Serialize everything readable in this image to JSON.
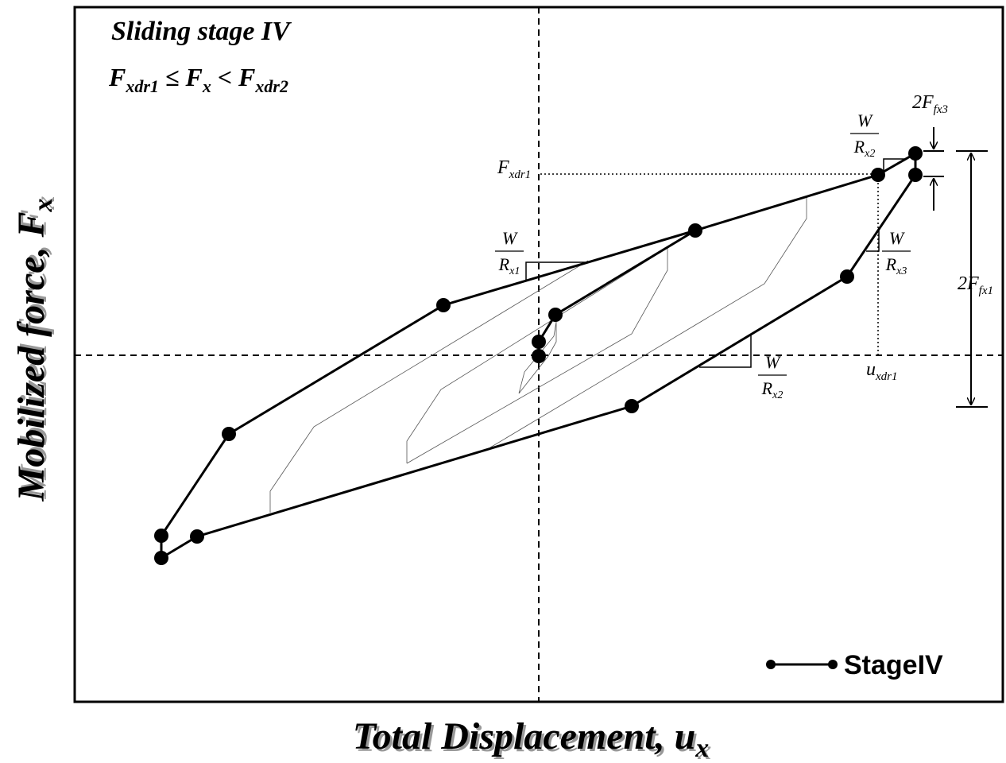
{
  "title": "Sliding stage IV",
  "condition": [
    "F",
    "xdr1",
    " ≤ F",
    "x",
    " < F",
    "xdr2"
  ],
  "x_axis_label": {
    "text": "Total Displacement, u",
    "subscript": "x"
  },
  "y_axis_label": {
    "text": "Mobilized force, F",
    "subscript": "x"
  },
  "slope_labels": [
    {
      "numerator": "W",
      "denominator": "R",
      "subscript": "x1"
    },
    {
      "numerator": "W",
      "denominator": "R",
      "subscript": "x2"
    },
    {
      "numerator": "W",
      "denominator": "R",
      "subscript": "x3"
    },
    {
      "numerator": "W",
      "denominator": "R",
      "subscript": "x2"
    }
  ],
  "level_labels": [
    {
      "text": "F",
      "subscript": "xdr1"
    },
    {
      "text": "u",
      "subscript": "xdr1"
    },
    {
      "text": "2F",
      "subscript": "fx3"
    },
    {
      "text": "2F",
      "subscript": "fx1"
    }
  ],
  "legend": "StageIV"
}
